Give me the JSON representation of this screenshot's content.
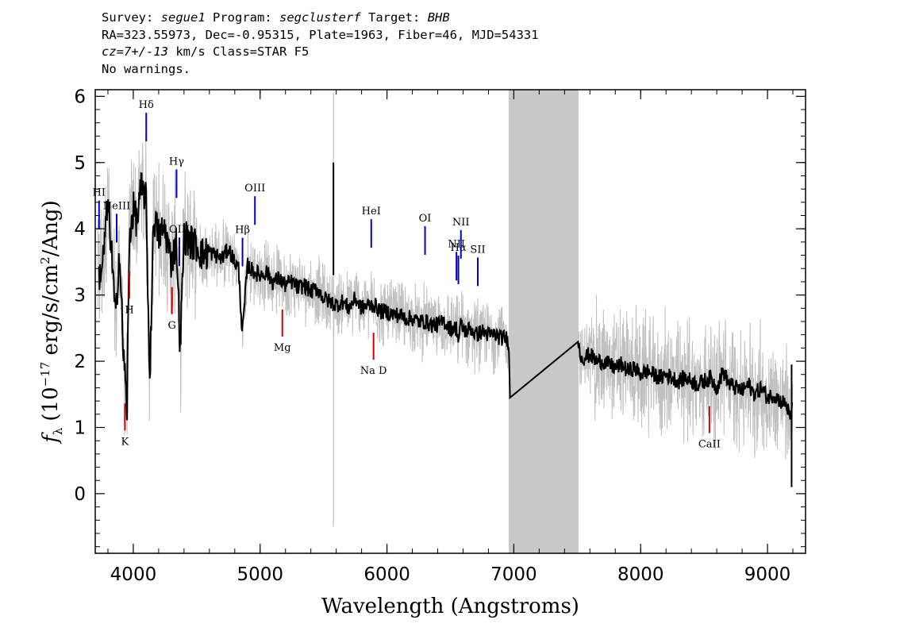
{
  "header": {
    "survey_label": "Survey:",
    "survey": "segue1",
    "program_label": "Program:",
    "program": "segclusterf",
    "target_label": "Target:",
    "target": "BHB",
    "line2": "RA=323.55973, Dec=-0.95315, Plate=1963, Fiber=46, MJD=54331",
    "cz_label": "cz=7+/-13",
    "cz_unit": "km/s",
    "class": "Class=STAR F5",
    "warnings": "No warnings."
  },
  "chart_data": {
    "type": "line",
    "xlabel": "Wavelength (Angstroms)",
    "ylabel": "f_λ (10^-17 erg/s/cm^2/Ang)",
    "ylabel_parts": {
      "f": "f",
      "sub": "λ",
      "open": "(10",
      "exp": "−17",
      "mid": " erg/s/cm",
      "exp2": "2",
      "close": "/Ang)"
    },
    "xlim": [
      3700,
      9300
    ],
    "ylim": [
      -0.9,
      6.1
    ],
    "x_ticks": [
      4000,
      5000,
      6000,
      7000,
      8000,
      9000
    ],
    "y_ticks": [
      0,
      1,
      2,
      3,
      4,
      5,
      6
    ],
    "masked_region": [
      6960,
      7510
    ],
    "colors": {
      "model": "#000000",
      "flux": "#c0c0c0",
      "emission": "#0000cc",
      "absorption": "#cc0000",
      "mask": "#c8c8c8"
    },
    "series": [
      {
        "style": "smoothed",
        "x": [
          3720,
          3760,
          3800,
          3830,
          3860,
          3890,
          3920,
          3950,
          3970,
          4000,
          4030,
          4060,
          4100,
          4130,
          4160,
          4200,
          4250,
          4300,
          4340,
          4370,
          4400,
          4450,
          4500,
          4550,
          4600,
          4650,
          4700,
          4750,
          4800,
          4830,
          4860,
          4900,
          4950,
          5000,
          5050,
          5100,
          5150,
          5200,
          5250,
          5300,
          5350,
          5400,
          5450,
          5500,
          5550,
          5600,
          5650,
          5700,
          5750,
          5800,
          5850,
          5900,
          5950,
          6000,
          6050,
          6100,
          6150,
          6200,
          6250,
          6300,
          6350,
          6400,
          6450,
          6500,
          6550,
          6563,
          6580,
          6620,
          6660,
          6700,
          6750,
          6800,
          6850,
          6900,
          6940,
          6960,
          6970,
          7510,
          7520,
          7550,
          7600,
          7650,
          7700,
          7750,
          7800,
          7850,
          7900,
          7950,
          8000,
          8050,
          8100,
          8150,
          8200,
          8250,
          8300,
          8350,
          8400,
          8450,
          8500,
          8550,
          8600,
          8650,
          8700,
          8750,
          8800,
          8850,
          8900,
          8950,
          9000,
          9050,
          9100,
          9150,
          9180,
          9200
        ],
        "y": [
          3.2,
          3.5,
          4.4,
          3.6,
          2.6,
          3.7,
          2.2,
          1.3,
          3.9,
          4.3,
          4.1,
          4.6,
          4.5,
          1.7,
          4.2,
          3.9,
          4.0,
          3.5,
          3.8,
          2.2,
          3.9,
          3.8,
          3.75,
          3.6,
          3.65,
          3.6,
          3.55,
          3.7,
          3.5,
          3.4,
          2.4,
          3.45,
          3.35,
          3.3,
          3.35,
          3.2,
          3.25,
          3.15,
          3.2,
          3.1,
          3.15,
          3.05,
          3.1,
          2.95,
          2.9,
          2.85,
          2.9,
          2.8,
          2.95,
          2.8,
          2.85,
          2.85,
          2.75,
          2.75,
          2.7,
          2.7,
          2.65,
          2.65,
          2.6,
          2.6,
          2.55,
          2.55,
          2.6,
          2.5,
          2.5,
          2.3,
          2.55,
          2.45,
          2.5,
          2.4,
          2.45,
          2.4,
          2.4,
          2.35,
          2.35,
          2.3,
          1.45,
          2.3,
          2.1,
          2.05,
          2.1,
          2.0,
          2.0,
          1.95,
          1.9,
          1.95,
          1.85,
          1.9,
          1.8,
          1.85,
          1.8,
          1.75,
          1.8,
          1.75,
          1.7,
          1.75,
          1.7,
          1.65,
          1.7,
          1.75,
          1.6,
          1.85,
          1.65,
          1.6,
          1.55,
          1.65,
          1.5,
          1.6,
          1.45,
          1.5,
          1.4,
          1.35,
          1.1,
          1.5
        ]
      }
    ],
    "line_labels": [
      {
        "text": "HI",
        "wave": 3730,
        "kind": "emission"
      },
      {
        "text": "NeIII",
        "wave": 3869,
        "kind": "emission"
      },
      {
        "text": "Hδ",
        "wave": 4102,
        "kind": "emission"
      },
      {
        "text": "Hγ",
        "wave": 4341,
        "kind": "emission"
      },
      {
        "text": "OIII",
        "wave": 4363,
        "kind": "emission"
      },
      {
        "text": "Hβ",
        "wave": 4861,
        "kind": "emission"
      },
      {
        "text": "OIII",
        "wave": 4959,
        "kind": "emission"
      },
      {
        "text": "HeI",
        "wave": 5876,
        "kind": "emission"
      },
      {
        "text": "OI",
        "wave": 6300,
        "kind": "emission"
      },
      {
        "text": "NII",
        "wave": 6548,
        "kind": "emission"
      },
      {
        "text": "Hα",
        "wave": 6563,
        "kind": "emission"
      },
      {
        "text": "NII",
        "wave": 6583,
        "kind": "emission"
      },
      {
        "text": "SII",
        "wave": 6716,
        "kind": "emission"
      },
      {
        "text": "G",
        "wave": 4305,
        "kind": "absorption"
      },
      {
        "text": "Mg",
        "wave": 5175,
        "kind": "absorption"
      },
      {
        "text": "Na D",
        "wave": 5894,
        "kind": "absorption"
      },
      {
        "text": "K",
        "wave": 3934,
        "kind": "absorption"
      },
      {
        "text": "H",
        "wave": 3969,
        "kind": "absorption"
      },
      {
        "text": "CaII",
        "wave": 8542,
        "kind": "absorption"
      }
    ]
  }
}
